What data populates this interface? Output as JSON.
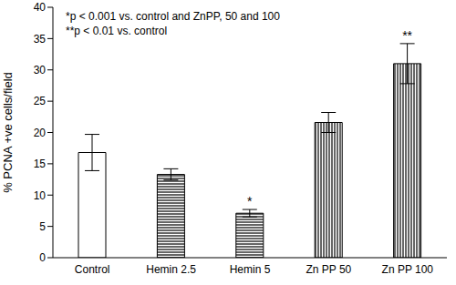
{
  "chart_data": {
    "type": "bar",
    "categories": [
      "Control",
      "Hemin 2.5",
      "Hemin 5",
      "Zn PP 50",
      "Zn PP 100"
    ],
    "values": [
      16.8,
      13.3,
      7.1,
      21.6,
      31.0
    ],
    "errors": [
      2.9,
      0.9,
      0.6,
      1.6,
      3.2
    ],
    "significance": [
      null,
      null,
      "*",
      null,
      "**"
    ],
    "y_label": "% PCNA +ve cells/field",
    "annotations": [
      "*p < 0.001 vs. control and ZnPP, 50 and 100",
      "**p < 0.01 vs. control"
    ],
    "color": "#000000",
    "ylim": [
      0,
      40
    ],
    "yticks": [
      0,
      5,
      10,
      15,
      20,
      25,
      30,
      35,
      40
    ],
    "grid": false
  }
}
